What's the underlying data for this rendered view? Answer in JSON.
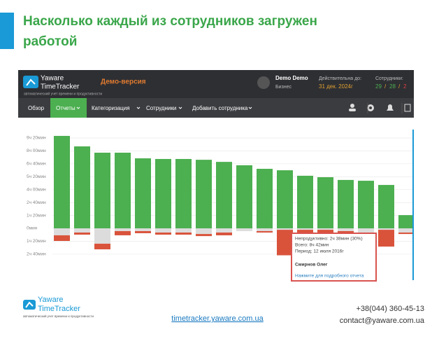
{
  "slide": {
    "title_line1": "Насколько каждый из сотрудников загружен",
    "title_line2": "работой"
  },
  "app": {
    "logo_top": "Yaware",
    "logo_bottom": "TimeTracker",
    "tagline": "автоматический учет времени и продуктивности",
    "demo": "Демо-версия",
    "user": "Demo Demo",
    "plan": "Бизнес",
    "valid_label": "Действительна до:",
    "valid_date": "31 дек. 2024г",
    "employees_label": "Сотрудники:",
    "employees_total": "29",
    "separator": "/",
    "employees_active": "28",
    "employees_off": "2",
    "nav": [
      "Обзор",
      "Отчеты",
      "Категоризация",
      "Сотрудники",
      "Добавить сотрудника"
    ]
  },
  "chart_data": {
    "type": "bar",
    "ylim": [
      -200,
      620
    ],
    "yticks": [
      {
        "value": 560,
        "label": "9ч 20мин"
      },
      {
        "value": 480,
        "label": "8ч 00мин"
      },
      {
        "value": 400,
        "label": "6ч 40мин"
      },
      {
        "value": 320,
        "label": "5ч 20мин"
      },
      {
        "value": 240,
        "label": "4ч 00мин"
      },
      {
        "value": 160,
        "label": "2ч 40мин"
      },
      {
        "value": 80,
        "label": "1ч 20мин"
      },
      {
        "value": 0,
        "label": "0мин"
      },
      {
        "value": -80,
        "label": "1ч 20мин"
      },
      {
        "value": -160,
        "label": "2ч 40мин"
      }
    ],
    "grid": true,
    "series": [
      {
        "color": "#4caf50",
        "values": [
          573,
          508,
          469,
          469,
          434,
          430,
          430,
          425,
          412,
          391,
          369,
          360,
          326,
          317,
          300,
          295,
          269,
          82
        ]
      },
      {
        "color": "#dcdcdc",
        "values": [
          -43,
          -26,
          -95,
          -17,
          -17,
          -26,
          -26,
          -35,
          -26,
          -17,
          -17,
          -9,
          -9,
          -9,
          -17,
          -26,
          -9,
          -26
        ]
      },
      {
        "color": "#d9533b",
        "values": [
          -35,
          -13,
          -35,
          -26,
          -13,
          -13,
          -13,
          -13,
          -17,
          0,
          -9,
          -158,
          -17,
          -158,
          -43,
          0,
          -104,
          -9
        ]
      }
    ]
  },
  "tooltip": {
    "line1": "Непродуктивно: 2ч 38мин (30%)",
    "line2": "Всего: 8ч 42мин",
    "line3": "Период: 12 июля 2016г",
    "name": "Смирнов Олег",
    "link": "Нажмите для подробного отчета"
  },
  "footer": {
    "logo_top": "Yaware",
    "logo_bottom": "TimeTracker",
    "tagline": "автоматический учет времени и продуктивности",
    "site": "timetracker.yaware.com.ua",
    "phone": "+38(044) 360-45-13",
    "email": "contact@yaware.com.ua"
  }
}
